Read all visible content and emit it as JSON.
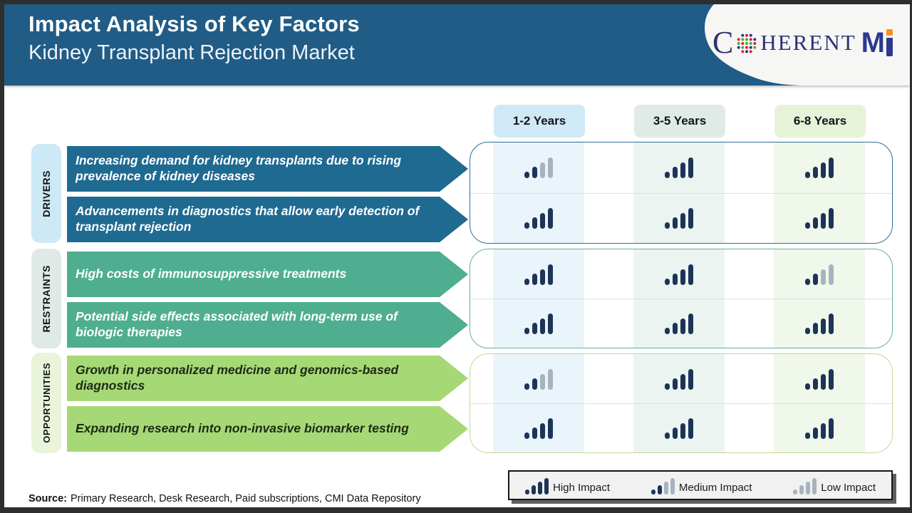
{
  "header": {
    "title": "Impact Analysis of Key Factors",
    "subtitle": "Kidney Transplant Rejection Market",
    "logo": {
      "part_c": "C",
      "part_herent": "HERENT",
      "part_m": "M"
    }
  },
  "columns": [
    {
      "label": "1-2 Years",
      "chip_bg": "#cfe9f7",
      "stripe_bg": "#e9f4fb"
    },
    {
      "label": "3-5 Years",
      "chip_bg": "#dfebe6",
      "stripe_bg": "#ecf4f1"
    },
    {
      "label": "6-8 Years",
      "chip_bg": "#e7f3d9",
      "stripe_bg": "#f0f7eb"
    }
  ],
  "groups": [
    {
      "label": "DRIVERS",
      "pill_bg": "#cde9f6",
      "arrow_bg": "#1f6a91",
      "arrow_text": "#ffffff",
      "box_border": "#2e6e99",
      "rows": [
        {
          "text": "Increasing demand for kidney transplants due to rising prevalence of kidney diseases",
          "impacts": [
            "medium",
            "high",
            "high"
          ]
        },
        {
          "text": "Advancements in diagnostics that allow early detection of transplant rejection",
          "impacts": [
            "high",
            "high",
            "high"
          ]
        }
      ]
    },
    {
      "label": "RESTRAINTS",
      "pill_bg": "#dfeae6",
      "arrow_bg": "#4fae90",
      "arrow_text": "#ffffff",
      "box_border": "#5fb29b",
      "rows": [
        {
          "text": "High costs of immunosuppressive treatments",
          "impacts": [
            "high",
            "high",
            "medium"
          ]
        },
        {
          "text": "Potential side effects associated with long-term use of biologic therapies",
          "impacts": [
            "high",
            "high",
            "high"
          ]
        }
      ]
    },
    {
      "label": "OPPORTUNITIES",
      "pill_bg": "#e9f4da",
      "arrow_bg": "#a7d876",
      "arrow_text": "#1d2a14",
      "box_border": "#c5d894",
      "rows": [
        {
          "text": "Growth in personalized medicine and genomics-based diagnostics",
          "impacts": [
            "medium",
            "high",
            "high"
          ]
        },
        {
          "text": "Expanding research into non-invasive biomarker testing",
          "impacts": [
            "high",
            "high",
            "high"
          ]
        }
      ]
    }
  ],
  "legend": {
    "items": [
      {
        "label": "High Impact",
        "level": "high"
      },
      {
        "label": "Medium Impact",
        "level": "medium"
      },
      {
        "label": "Low Impact",
        "level": "low"
      }
    ]
  },
  "impact_icon": {
    "bar_on_color": "#1c3457",
    "bar_off_color": "#a9b3c0",
    "bar_heights": [
      9,
      16,
      22,
      29
    ],
    "levels": {
      "high": [
        1,
        1,
        1,
        1
      ],
      "medium": [
        1,
        1,
        0,
        0
      ],
      "low": [
        0,
        0,
        0,
        0
      ]
    }
  },
  "source": {
    "label": "Source:",
    "text": "Primary Research, Desk Research, Paid subscriptions, CMI Data Repository"
  },
  "theme": {
    "header_bg": "#205c86",
    "logo_navy": "#2c3274",
    "logo_m_navy": "#2b3990",
    "logo_orange": "#f6921e"
  }
}
